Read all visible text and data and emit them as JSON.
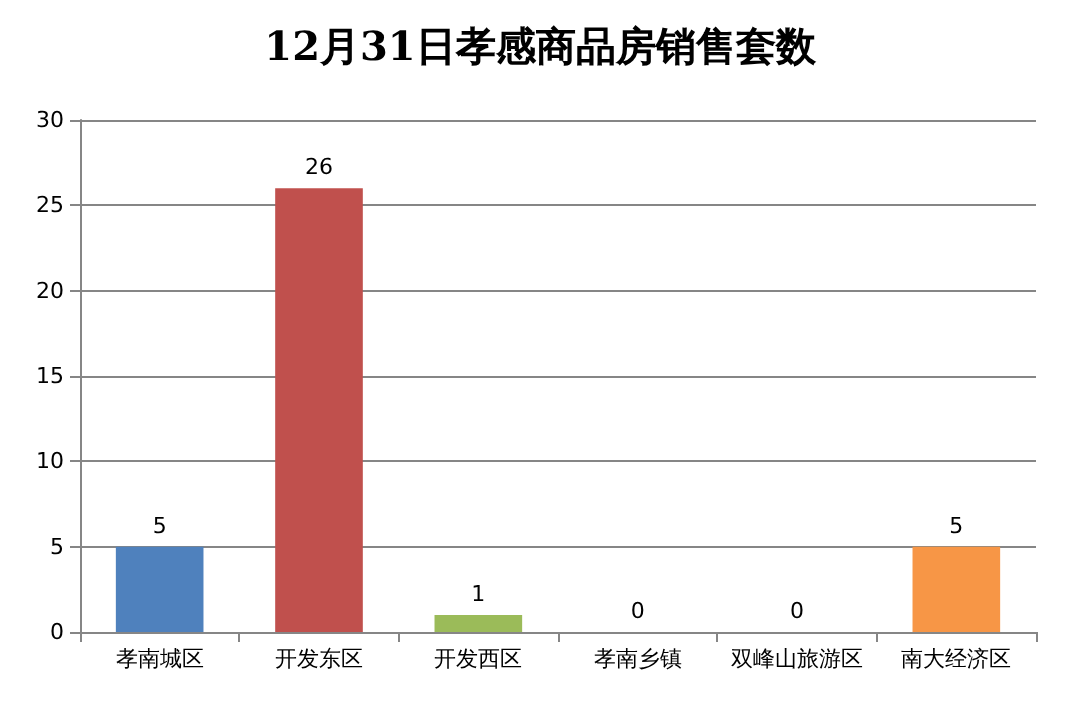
{
  "chart_data": {
    "type": "bar",
    "title": "12月31日孝感商品房销售套数",
    "categories": [
      "孝南城区",
      "开发东区",
      "开发西区",
      "孝南乡镇",
      "双峰山旅游区",
      "南大经济区"
    ],
    "values": [
      5,
      26,
      1,
      0,
      0,
      5
    ],
    "colors": [
      "#4f81bd",
      "#c0504d",
      "#9bbb59",
      "#8064a2",
      "#4bacc6",
      "#f79646"
    ],
    "ylim": [
      0,
      30
    ],
    "yticks": [
      0,
      5,
      10,
      15,
      20,
      25,
      30
    ],
    "grid": "y",
    "data_labels": true
  }
}
